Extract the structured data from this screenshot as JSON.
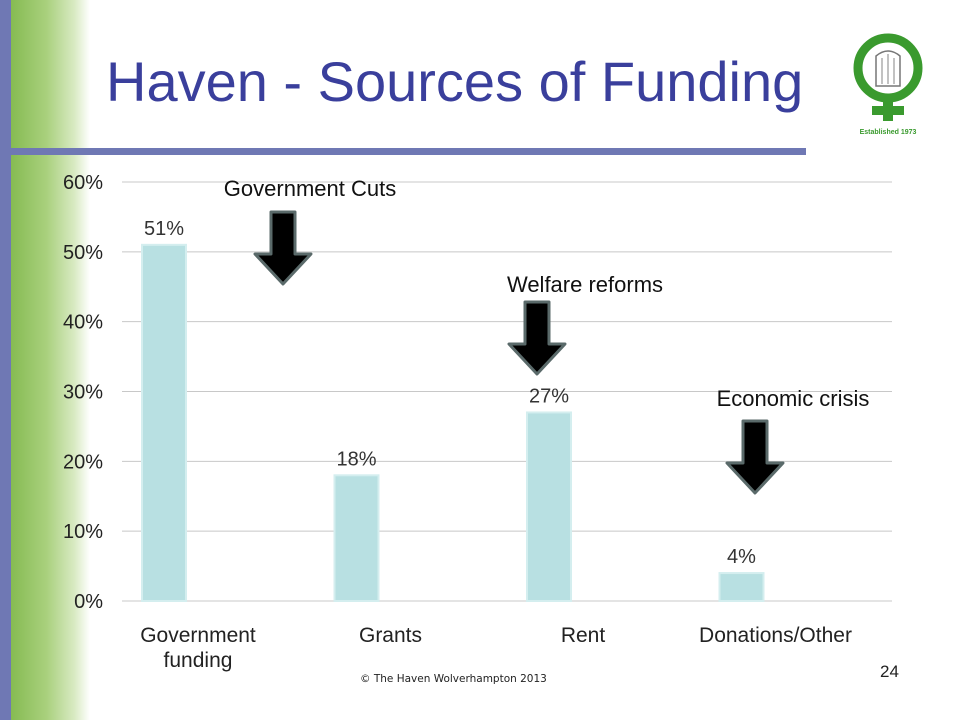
{
  "slide": {
    "title": "Haven - Sources of Funding",
    "copyright": "© The Haven Wolverhampton 2013",
    "page_number": "24",
    "logo": {
      "text": "Established 1973",
      "icon": "female-symbol-logo-icon"
    }
  },
  "colors": {
    "bar": "#b8e0e2",
    "bar_stroke": "#d4eeef",
    "gridline": "#c8c8c8",
    "title": "#3a3f9c",
    "side_bar": "#6f78b4",
    "logo_green": "#3a9a2e",
    "arrow": "#000000"
  },
  "chart_data": {
    "type": "bar",
    "categories": [
      "Government funding",
      "Grants",
      "Rent",
      "Donations/Other"
    ],
    "values": [
      51,
      18,
      27,
      4
    ],
    "data_labels": [
      "51%",
      "18%",
      "27%",
      "4%"
    ],
    "ylim": [
      0,
      60
    ],
    "yticks": [
      0,
      10,
      20,
      30,
      40,
      50,
      60
    ],
    "ytick_labels": [
      "0%",
      "10%",
      "20%",
      "30%",
      "40%",
      "50%",
      "60%"
    ],
    "grid": true,
    "annotations": [
      {
        "text": "Government Cuts",
        "category_index": 0,
        "arrow": "down"
      },
      {
        "text": "Welfare reforms",
        "category_index": 2,
        "arrow": "down"
      },
      {
        "text": "Economic crisis",
        "category_index": 3,
        "arrow": "down"
      }
    ]
  }
}
